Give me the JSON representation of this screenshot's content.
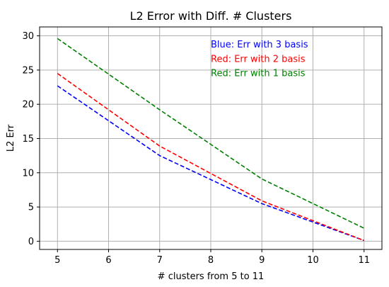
{
  "chart_data": {
    "type": "line",
    "title": "L2 Error with Diff. # Clusters",
    "xlabel": "# clusters from 5 to 11",
    "ylabel": "L2 Err",
    "xlim": [
      4.65,
      11.35
    ],
    "ylim": [
      -1.2,
      31.3
    ],
    "xticks": [
      5,
      6,
      7,
      8,
      9,
      10,
      11
    ],
    "yticks": [
      0,
      5,
      10,
      15,
      20,
      25,
      30
    ],
    "grid": true,
    "line_style": "dashed",
    "series": [
      {
        "color": "#0000ff",
        "x": [
          5,
          7,
          9,
          11
        ],
        "values": [
          22.7,
          12.5,
          5.5,
          0.1
        ]
      },
      {
        "color": "#ff0000",
        "x": [
          5,
          7,
          9,
          11
        ],
        "values": [
          24.5,
          13.9,
          5.9,
          0.1
        ]
      },
      {
        "color": "#008000",
        "x": [
          5,
          7,
          9,
          11
        ],
        "values": [
          29.6,
          19.2,
          9.1,
          1.9
        ]
      }
    ],
    "annotations": [
      {
        "text": "Blue: Err with 3 basis",
        "color": "#0000ff",
        "x": 8.0,
        "y": 28.3
      },
      {
        "text": "Red: Err with 2 basis",
        "color": "#ff0000",
        "x": 8.0,
        "y": 26.2
      },
      {
        "text": "Red: Err with 1 basis",
        "color": "#008000",
        "x": 8.0,
        "y": 24.1
      }
    ]
  }
}
